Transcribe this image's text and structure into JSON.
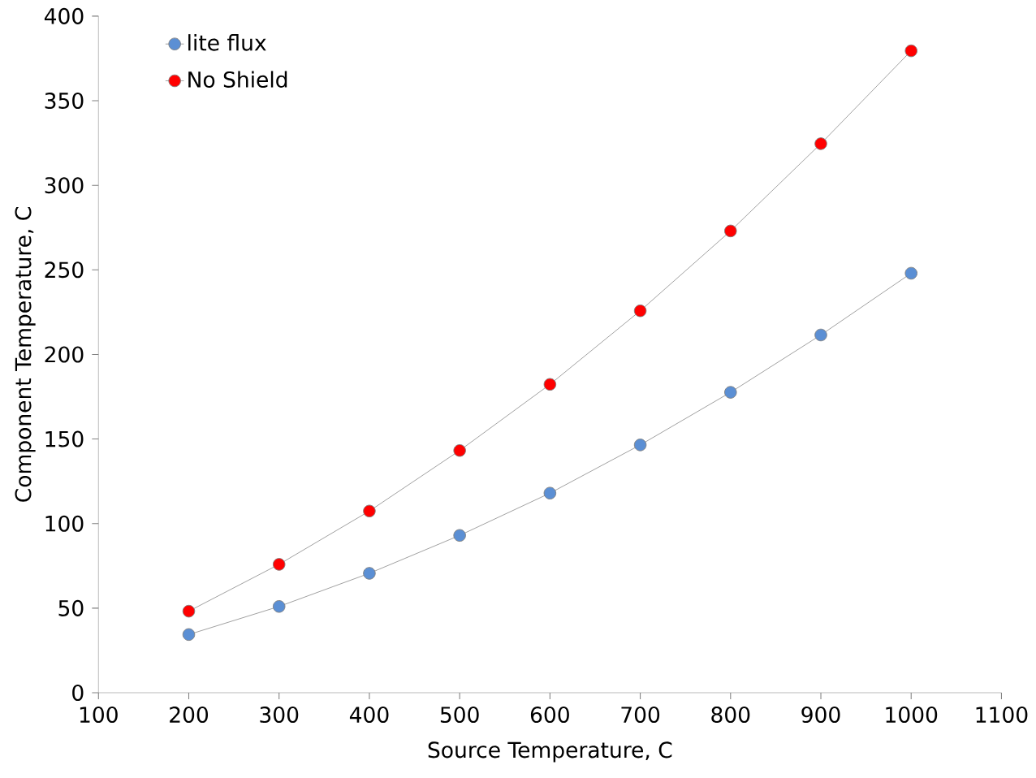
{
  "chart_data": {
    "type": "line",
    "xlabel": "Source Temperature, C",
    "ylabel": "Component Temperature, C",
    "x": [
      200,
      300,
      400,
      500,
      600,
      700,
      800,
      900,
      1000
    ],
    "series": [
      {
        "name": "lite flux",
        "color": "#5b8fd4",
        "values": [
          34.4,
          51,
          70.6,
          93,
          118,
          146.5,
          177.6,
          211.5,
          248
        ]
      },
      {
        "name": "No Shield",
        "color": "#ff0000",
        "values": [
          48.2,
          75.9,
          107.4,
          143.2,
          182.3,
          225.8,
          273,
          324.6,
          379.5
        ]
      }
    ],
    "xlim": [
      100,
      1100
    ],
    "xticks": [
      100,
      200,
      300,
      400,
      500,
      600,
      700,
      800,
      900,
      1000,
      1100
    ],
    "ylim": [
      0,
      400
    ],
    "yticks": [
      0,
      50,
      100,
      150,
      200,
      250,
      300,
      350,
      400
    ],
    "legend": "top left",
    "marker": "circle",
    "line_style": "solid",
    "grid": false
  }
}
